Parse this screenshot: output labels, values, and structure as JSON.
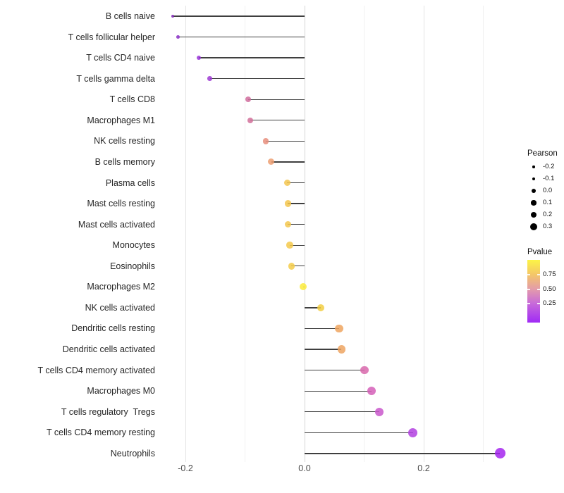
{
  "chart_data": {
    "type": "scatter",
    "subtype": "lollipop",
    "title": "",
    "xlabel": "",
    "ylabel": "",
    "xlim": [
      -0.245,
      0.36
    ],
    "grid": "vertical-only",
    "x_ticks": [
      {
        "label": "-0.2",
        "value": -0.2
      },
      {
        "label": "0.0",
        "value": 0.0
      },
      {
        "label": "0.2",
        "value": 0.2
      }
    ],
    "x_minor_gridlines": [
      -0.1,
      0.1,
      0.3
    ],
    "points": [
      {
        "label": "B cells naive",
        "pearson": -0.221,
        "color": "#8026b5"
      },
      {
        "label": "T cells follicular helper",
        "pearson": -0.212,
        "color": "#8a2ec5"
      },
      {
        "label": "T cells CD4 naive",
        "pearson": -0.178,
        "color": "#9934d8"
      },
      {
        "label": "T cells gamma delta",
        "pearson": -0.159,
        "color": "#9d3ad4"
      },
      {
        "label": "T cells CD8",
        "pearson": -0.095,
        "color": "#d06c9c"
      },
      {
        "label": "Macrophages M1",
        "pearson": -0.091,
        "color": "#d2709a"
      },
      {
        "label": "NK cells resting",
        "pearson": -0.065,
        "color": "#e78e7d"
      },
      {
        "label": "B cells memory",
        "pearson": -0.056,
        "color": "#ed9f72"
      },
      {
        "label": "Plasma cells",
        "pearson": -0.029,
        "color": "#f3c64f"
      },
      {
        "label": "Mast cells resting",
        "pearson": -0.028,
        "color": "#f3c64e"
      },
      {
        "label": "Mast cells activated",
        "pearson": -0.028,
        "color": "#f3c74d"
      },
      {
        "label": "Monocytes",
        "pearson": -0.025,
        "color": "#f4c94b"
      },
      {
        "label": "Eosinophils",
        "pearson": -0.022,
        "color": "#f4cc49"
      },
      {
        "label": "Macrophages M2",
        "pearson": -0.002,
        "color": "#fbeb3c"
      },
      {
        "label": "NK cells activated",
        "pearson": 0.027,
        "color": "#f2ce42"
      },
      {
        "label": "Dendritic cells resting",
        "pearson": 0.058,
        "color": "#eea55f"
      },
      {
        "label": "Dendritic cells activated",
        "pearson": 0.062,
        "color": "#eda461"
      },
      {
        "label": "T cells CD4 memory activated",
        "pearson": 0.101,
        "color": "#d867ac"
      },
      {
        "label": "Macrophages M0",
        "pearson": 0.113,
        "color": "#d55fb9"
      },
      {
        "label": "T cells regulatory  Tregs",
        "pearson": 0.125,
        "color": "#c957cb"
      },
      {
        "label": "T cells CD4 memory resting",
        "pearson": 0.182,
        "color": "#b13fe0"
      },
      {
        "label": "Neutrophils",
        "pearson": 0.328,
        "color": "#a526ee"
      }
    ]
  },
  "legends": {
    "size": {
      "title": "Pearson",
      "entries": [
        {
          "label": "-0.2",
          "value": -0.2
        },
        {
          "label": "-0.1",
          "value": -0.1
        },
        {
          "label": "0.0",
          "value": 0.0
        },
        {
          "label": "0.1",
          "value": 0.1
        },
        {
          "label": "0.2",
          "value": 0.2
        },
        {
          "label": "0.3",
          "value": 0.3
        }
      ]
    },
    "color": {
      "title": "Pvalue",
      "ticks": [
        {
          "label": "0.75",
          "pos": 0.236
        },
        {
          "label": "0.50",
          "pos": 0.472
        },
        {
          "label": "0.25",
          "pos": 0.697
        }
      ],
      "gradient_top_to_bottom": [
        "#fcf446",
        "#f4c768",
        "#e39bab",
        "#c769da",
        "#a02af5"
      ]
    }
  }
}
